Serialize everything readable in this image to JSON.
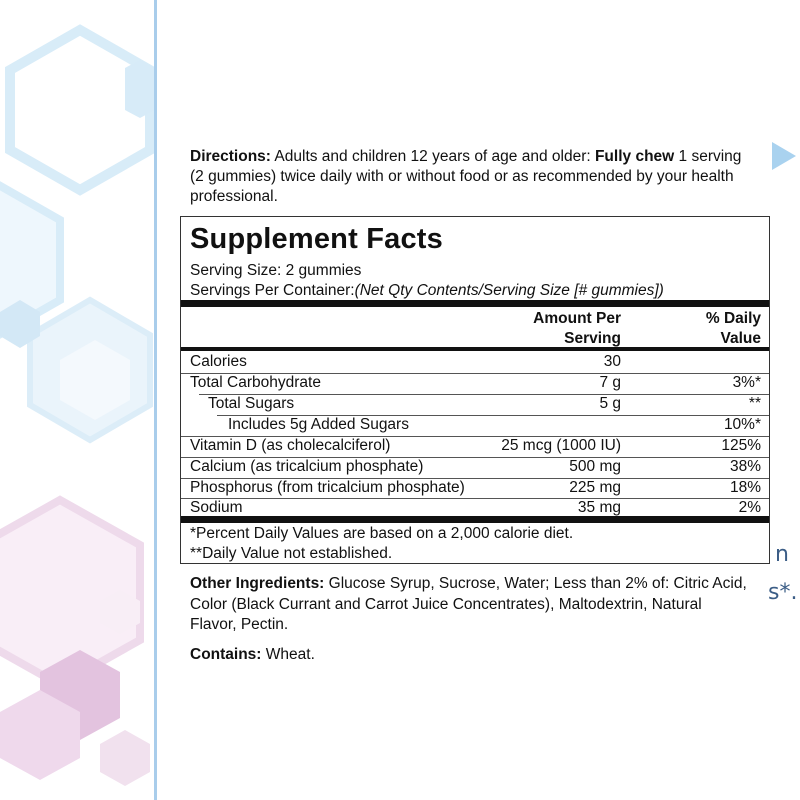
{
  "colors": {
    "hex_blue": "#cfe6f5",
    "hex_pink": "#e3c3df",
    "accent_arrow": "#a9d2ef",
    "divider": "#7fb3e0"
  },
  "edge_text": [
    "n",
    "s*."
  ],
  "directions": {
    "label": "Directions:",
    "text_1": " Adults and children 12 years of age and older: ",
    "bold": "Fully chew",
    "text_2": " 1 serving (2 gummies) twice daily with or without food or as recommended by your health professional."
  },
  "supplement_facts": {
    "title": "Supplement Facts",
    "serving_size": "Serving Size: 2 gummies",
    "servings_label": "Servings Per Container:",
    "servings_value": "(Net Qty Contents/Serving Size [# gummies])",
    "header_amount_1": "Amount Per",
    "header_amount_2": "Serving",
    "header_dv_1": "% Daily",
    "header_dv_2": "Value",
    "rows": [
      {
        "label": "Calories",
        "amount": "30",
        "dv": ""
      },
      {
        "label": "Total Carbohydrate",
        "amount": "7 g",
        "dv": "3%*"
      },
      {
        "label": "Total Sugars",
        "amount": "5 g",
        "dv": "**"
      },
      {
        "label": "Includes 5g Added Sugars",
        "amount": "",
        "dv": "10%*"
      },
      {
        "label": "Vitamin D (as cholecalciferol)",
        "amount": "25 mcg (1000 IU)",
        "dv": "125%"
      },
      {
        "label": "Calcium (as tricalcium phosphate)",
        "amount": "500 mg",
        "dv": "38%"
      },
      {
        "label": "Phosphorus (from tricalcium phosphate)",
        "amount": "225 mg",
        "dv": "18%"
      },
      {
        "label": "Sodium",
        "amount": "35 mg",
        "dv": "2%"
      }
    ],
    "footnote_1": "*Percent Daily Values are based on a 2,000 calorie diet.",
    "footnote_2": "**Daily Value not established."
  },
  "other_ingredients": {
    "label": "Other Ingredients:",
    "text": " Glucose Syrup, Sucrose, Water; Less than 2% of: Citric Acid, Color (Black Currant and Carrot Juice Concentrates), Maltodextrin, Natural Flavor, Pectin."
  },
  "contains": {
    "label": "Contains:",
    "text": " Wheat."
  }
}
